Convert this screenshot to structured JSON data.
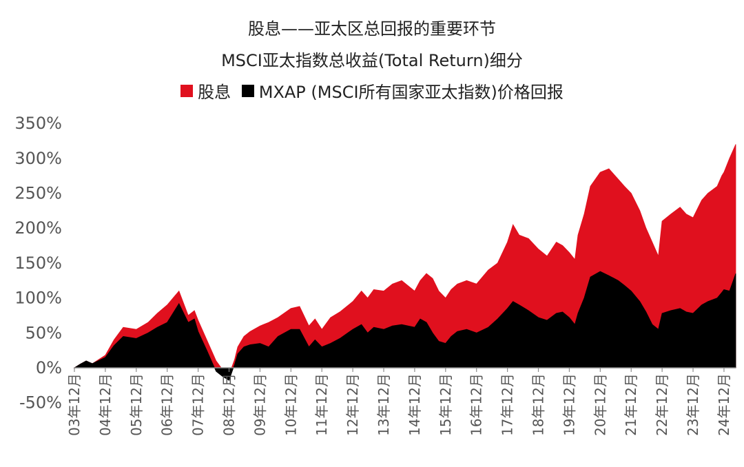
{
  "chart_data": {
    "type": "area",
    "title": "股息——亚太区总回报的重要环节",
    "subtitle": "MSCI亚太指数总收益(Total Return)细分",
    "legend": [
      "股息",
      "MXAP (MSCI所有国家亚太指数)价格回报"
    ],
    "ylabel": "",
    "xlabel": "",
    "ylim": [
      -50,
      350
    ],
    "ytick_labels": [
      "350%",
      "300%",
      "250%",
      "200%",
      "150%",
      "100%",
      "50%",
      "0%",
      "-50%"
    ],
    "x_tick_labels": [
      "03年12月",
      "04年12月",
      "05年12月",
      "06年12月",
      "07年12月",
      "08年12月",
      "09年12月",
      "10年12月",
      "11年12月",
      "12年12月",
      "13年12月",
      "14年12月",
      "15年12月",
      "16年12月",
      "17年12月",
      "18年12月",
      "19年12月",
      "20年12月",
      "21年12月",
      "22年12月",
      "23年12月",
      "24年12月"
    ],
    "series": [
      {
        "name": "股息",
        "color": "#e0101e",
        "x": [
          2003.92,
          2004.1,
          2004.3,
          2004.5,
          2004.92,
          2005.2,
          2005.5,
          2005.92,
          2006.3,
          2006.6,
          2006.92,
          2007.3,
          2007.6,
          2007.8,
          2007.92,
          2008.2,
          2008.5,
          2008.7,
          2008.92,
          2009.1,
          2009.2,
          2009.4,
          2009.6,
          2009.92,
          2010.2,
          2010.5,
          2010.92,
          2011.2,
          2011.5,
          2011.7,
          2011.92,
          2012.2,
          2012.5,
          2012.92,
          2013.2,
          2013.4,
          2013.6,
          2013.92,
          2014.2,
          2014.5,
          2014.92,
          2015.1,
          2015.3,
          2015.5,
          2015.7,
          2015.92,
          2016.1,
          2016.3,
          2016.6,
          2016.92,
          2017.3,
          2017.6,
          2017.92,
          2018.1,
          2018.3,
          2018.6,
          2018.92,
          2019.2,
          2019.5,
          2019.7,
          2019.92,
          2020.1,
          2020.2,
          2020.4,
          2020.6,
          2020.92,
          2021.2,
          2021.5,
          2021.7,
          2021.92,
          2022.2,
          2022.4,
          2022.6,
          2022.8,
          2022.92,
          2023.2,
          2023.5,
          2023.7,
          2023.92,
          2024.2,
          2024.4,
          2024.7,
          2024.85,
          2024.92,
          2025.1,
          2025.3
        ],
        "values": [
          0,
          5,
          10,
          6,
          18,
          40,
          58,
          55,
          65,
          78,
          90,
          110,
          75,
          82,
          68,
          40,
          10,
          -2,
          -10,
          12,
          30,
          45,
          52,
          60,
          65,
          72,
          85,
          88,
          60,
          70,
          55,
          72,
          80,
          95,
          110,
          100,
          112,
          110,
          120,
          125,
          110,
          125,
          135,
          128,
          110,
          100,
          112,
          120,
          125,
          120,
          140,
          150,
          180,
          205,
          190,
          185,
          170,
          160,
          180,
          175,
          165,
          155,
          190,
          220,
          260,
          280,
          285,
          270,
          260,
          250,
          225,
          200,
          180,
          160,
          210,
          220,
          230,
          220,
          215,
          240,
          250,
          260,
          275,
          280,
          300,
          320
        ]
      },
      {
        "name": "MXAP (MSCI所有国家亚太指数)价格回报",
        "color": "#000000",
        "x": [
          2003.92,
          2004.1,
          2004.3,
          2004.5,
          2004.92,
          2005.2,
          2005.5,
          2005.92,
          2006.3,
          2006.6,
          2006.92,
          2007.3,
          2007.6,
          2007.8,
          2007.92,
          2008.2,
          2008.5,
          2008.7,
          2008.92,
          2009.1,
          2009.2,
          2009.4,
          2009.6,
          2009.92,
          2010.2,
          2010.5,
          2010.92,
          2011.2,
          2011.5,
          2011.7,
          2011.92,
          2012.2,
          2012.5,
          2012.92,
          2013.2,
          2013.4,
          2013.6,
          2013.92,
          2014.2,
          2014.5,
          2014.92,
          2015.1,
          2015.3,
          2015.5,
          2015.7,
          2015.92,
          2016.1,
          2016.3,
          2016.6,
          2016.92,
          2017.3,
          2017.6,
          2017.92,
          2018.1,
          2018.3,
          2018.6,
          2018.92,
          2019.2,
          2019.5,
          2019.7,
          2019.92,
          2020.1,
          2020.2,
          2020.4,
          2020.6,
          2020.92,
          2021.2,
          2021.5,
          2021.7,
          2021.92,
          2022.2,
          2022.4,
          2022.6,
          2022.8,
          2022.92,
          2023.2,
          2023.5,
          2023.7,
          2023.92,
          2024.2,
          2024.4,
          2024.7,
          2024.85,
          2024.92,
          2025.1,
          2025.3
        ],
        "values": [
          0,
          5,
          10,
          6,
          15,
          32,
          45,
          42,
          50,
          58,
          65,
          92,
          65,
          70,
          52,
          25,
          -5,
          -12,
          -18,
          5,
          20,
          30,
          33,
          35,
          30,
          45,
          55,
          55,
          30,
          40,
          30,
          35,
          42,
          55,
          62,
          50,
          58,
          55,
          60,
          62,
          58,
          70,
          65,
          50,
          38,
          35,
          45,
          52,
          55,
          50,
          58,
          70,
          85,
          95,
          90,
          82,
          72,
          68,
          78,
          80,
          72,
          62,
          78,
          100,
          130,
          138,
          132,
          125,
          118,
          110,
          95,
          80,
          62,
          55,
          78,
          82,
          85,
          80,
          78,
          90,
          95,
          100,
          108,
          112,
          110,
          135
        ]
      }
    ]
  }
}
